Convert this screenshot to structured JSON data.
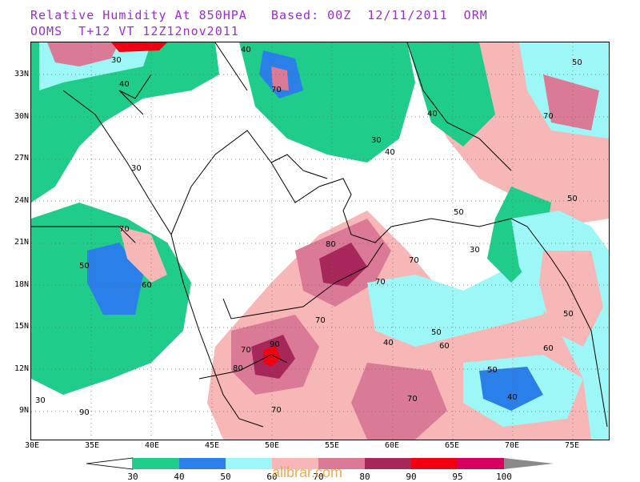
{
  "title": {
    "line1": "Relative Humidity At 850HPA   Based: 00Z  12/11/2011  ORM",
    "line2": "OOMS  T+12 VT 12Z12nov2011"
  },
  "map": {
    "lat_labels": [
      "33N",
      "30N",
      "27N",
      "24N",
      "21N",
      "18N",
      "15N",
      "12N",
      "9N"
    ],
    "lon_labels": [
      "30E",
      "35E",
      "40E",
      "45E",
      "50E",
      "55E",
      "60E",
      "65E",
      "70E",
      "75E"
    ]
  },
  "legend": {
    "labels": [
      "30",
      "40",
      "50",
      "60",
      "70",
      "80",
      "90",
      "95",
      "100"
    ],
    "colors": [
      "#1fcc8a",
      "#2a7fe8",
      "#9ef7f7",
      "#f7b7b7",
      "#db7a97",
      "#a8275b",
      "#f00010",
      "#d8005f",
      "#8a8a8a"
    ]
  },
  "watermark": "alibrar.com",
  "contour_labels": [
    "30",
    "40",
    "50",
    "60",
    "70",
    "80",
    "90"
  ]
}
